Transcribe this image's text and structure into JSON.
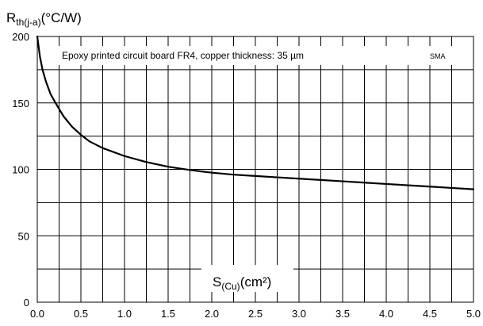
{
  "chart_data": {
    "type": "line",
    "title": "",
    "ylabel": {
      "main": "R",
      "sub": "th(j-a)",
      "unit": "(°C/W)"
    },
    "xlabel": {
      "main": "S",
      "sub": "(Cu)",
      "unit": "(cm²)"
    },
    "annotation": "Epoxy printed circuit board FR4, copper thickness:  35 µm",
    "package": "SMA",
    "xlim": [
      0,
      5
    ],
    "ylim": [
      0,
      200
    ],
    "x_ticks": [
      "0.0",
      "0.5",
      "1.0",
      "1.5",
      "2.0",
      "2.5",
      "3.0",
      "3.5",
      "4.0",
      "4.5",
      "5.0"
    ],
    "y_ticks": [
      "0",
      "50",
      "100",
      "150",
      "200"
    ],
    "grid": true,
    "series": [
      {
        "x": [
          0.0,
          0.03,
          0.06,
          0.1,
          0.15,
          0.2,
          0.3,
          0.4,
          0.5,
          0.6,
          0.75,
          1.0,
          1.25,
          1.5,
          1.75,
          2.0,
          2.25,
          2.5,
          2.75,
          3.0,
          3.25,
          3.5,
          3.75,
          4.0,
          4.25,
          4.5,
          4.75,
          5.0
        ],
        "y": [
          200,
          185,
          175,
          166,
          157,
          151,
          140,
          132,
          126,
          121,
          116,
          110,
          105.5,
          102,
          99.5,
          97.5,
          96,
          95,
          94,
          93,
          92,
          91,
          90,
          89,
          88,
          87,
          86,
          85
        ]
      }
    ]
  }
}
